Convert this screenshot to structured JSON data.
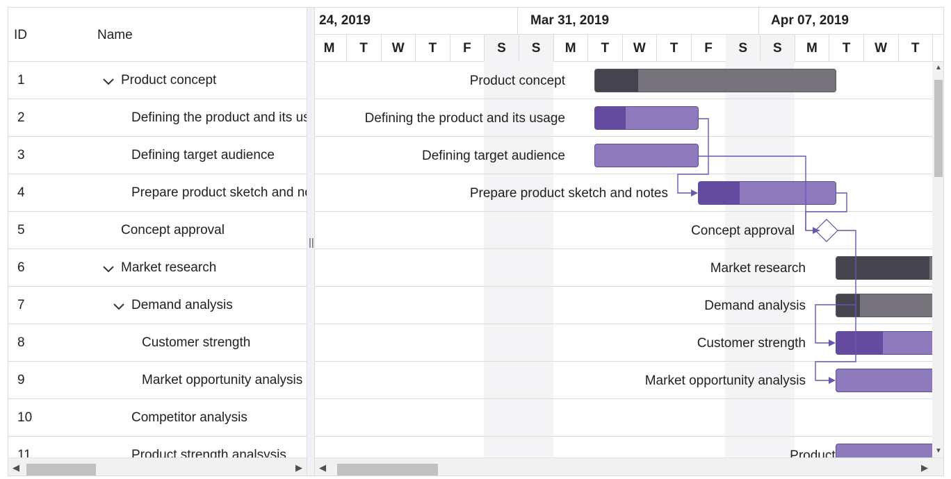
{
  "grid": {
    "headers": {
      "id": "ID",
      "name": "Name"
    },
    "rows": [
      {
        "id": "1",
        "name": "Product concept"
      },
      {
        "id": "2",
        "name": "Defining the product and its usage"
      },
      {
        "id": "3",
        "name": "Defining target audience"
      },
      {
        "id": "4",
        "name": "Prepare product sketch and notes"
      },
      {
        "id": "5",
        "name": "Concept approval"
      },
      {
        "id": "6",
        "name": "Market research"
      },
      {
        "id": "7",
        "name": "Demand analysis"
      },
      {
        "id": "8",
        "name": "Customer strength"
      },
      {
        "id": "9",
        "name": "Market opportunity analysis"
      },
      {
        "id": "10",
        "name": "Competitor analysis"
      },
      {
        "id": "11",
        "name": "Product strength analsysis"
      }
    ]
  },
  "splitter": {
    "grip": "||"
  },
  "timeline": {
    "weeks": [
      "24, 2019",
      "Mar 31, 2019",
      "Apr 07, 2019"
    ],
    "days": [
      "M",
      "T",
      "W",
      "T",
      "F",
      "S",
      "S",
      "M",
      "T",
      "W",
      "T",
      "F",
      "S",
      "S",
      "M",
      "T",
      "W",
      "T"
    ]
  },
  "tasks": [
    {
      "label": "Product concept",
      "type": "parent",
      "progress": 0.18
    },
    {
      "label": "Defining the product and its usage",
      "type": "child",
      "progress": 0.3
    },
    {
      "label": "Defining target audience",
      "type": "child",
      "progress": 0
    },
    {
      "label": "Prepare product sketch and notes",
      "type": "child",
      "progress": 0.3
    },
    {
      "label": "Concept approval",
      "type": "milestone"
    },
    {
      "label": "Market research",
      "type": "parent",
      "progress": 0.8
    },
    {
      "label": "Demand analysis",
      "type": "parent",
      "progress": 0.2
    },
    {
      "label": "Customer strength",
      "type": "child",
      "progress": 0.4
    },
    {
      "label": "Market opportunity analysis",
      "type": "child",
      "progress": 0
    },
    {
      "label": "",
      "type": "none"
    },
    {
      "label": "Product strength analsysis",
      "type": "child",
      "progress": 0
    }
  ],
  "colors": {
    "child_bar": "#8c7abc",
    "child_progress": "#644ba0",
    "parent_bar": "#76737a",
    "parent_progress": "#45434d",
    "connector": "#6a55b0"
  },
  "icons": {
    "expand": "chevron-down-icon",
    "scroll_left": "scroll-left-arrow-icon",
    "scroll_right": "scroll-right-arrow-icon",
    "scroll_up": "scroll-up-arrow-icon",
    "scroll_down": "scroll-down-arrow-icon"
  }
}
